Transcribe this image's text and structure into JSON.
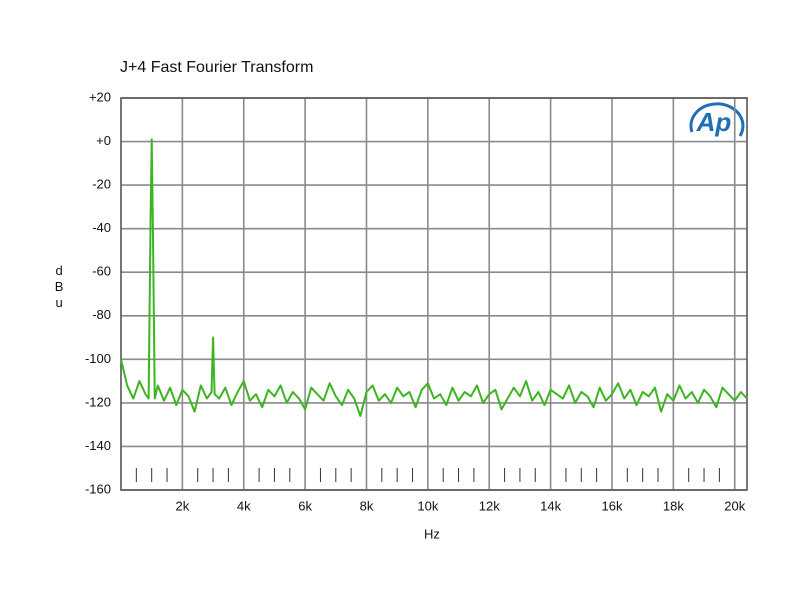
{
  "chart_data": {
    "type": "line",
    "title": "J+4 Fast Fourier Transform",
    "xlabel": "Hz",
    "ylabel": "dBu",
    "logo": "Ap",
    "color": "#3cb521",
    "grid": true,
    "xlim": [
      0,
      20400
    ],
    "ylim": [
      -160,
      20
    ],
    "xticks": [
      {
        "value": 2000,
        "label": "2k"
      },
      {
        "value": 4000,
        "label": "4k"
      },
      {
        "value": 6000,
        "label": "6k"
      },
      {
        "value": 8000,
        "label": "8k"
      },
      {
        "value": 10000,
        "label": "10k"
      },
      {
        "value": 12000,
        "label": "12k"
      },
      {
        "value": 14000,
        "label": "14k"
      },
      {
        "value": 16000,
        "label": "16k"
      },
      {
        "value": 18000,
        "label": "18k"
      },
      {
        "value": 20000,
        "label": "20k"
      }
    ],
    "xminorticks": [
      500,
      1000,
      1500,
      2500,
      3000,
      3500,
      4500,
      5000,
      5500,
      6500,
      7000,
      7500,
      8500,
      9000,
      9500,
      10500,
      11000,
      11500,
      12500,
      13000,
      13500,
      14500,
      15000,
      15500,
      16500,
      17000,
      17500,
      18500,
      19000,
      19500
    ],
    "yticks": [
      {
        "value": 20,
        "label": "+20"
      },
      {
        "value": 0,
        "label": "+0"
      },
      -20,
      -40,
      -60,
      -80,
      -100,
      -120,
      -140,
      -160
    ],
    "x": [
      0,
      200,
      400,
      600,
      800,
      900,
      960,
      1000,
      1040,
      1100,
      1200,
      1400,
      1600,
      1800,
      2000,
      2200,
      2400,
      2600,
      2800,
      2950,
      3000,
      3050,
      3200,
      3400,
      3600,
      3800,
      4000,
      4200,
      4400,
      4600,
      4800,
      5000,
      5200,
      5400,
      5600,
      5800,
      6000,
      6200,
      6400,
      6600,
      6800,
      7000,
      7200,
      7400,
      7600,
      7800,
      8000,
      8200,
      8400,
      8600,
      8800,
      9000,
      9200,
      9400,
      9600,
      9800,
      10000,
      10200,
      10400,
      10600,
      10800,
      11000,
      11200,
      11400,
      11600,
      11800,
      12000,
      12200,
      12400,
      12600,
      12800,
      13000,
      13200,
      13400,
      13600,
      13800,
      14000,
      14200,
      14400,
      14600,
      14800,
      15000,
      15200,
      15400,
      15600,
      15800,
      16000,
      16200,
      16400,
      16600,
      16800,
      17000,
      17200,
      17400,
      17600,
      17800,
      18000,
      18200,
      18400,
      18600,
      18800,
      19000,
      19200,
      19400,
      19600,
      19800,
      20000,
      20200,
      20400
    ],
    "values": [
      -100,
      -112,
      -118,
      -110,
      -116,
      -118,
      -40,
      1,
      -40,
      -118,
      -112,
      -119,
      -113,
      -121,
      -114,
      -117,
      -124,
      -112,
      -118,
      -115,
      -90,
      -116,
      -118,
      -113,
      -121,
      -115,
      -110,
      -119,
      -116,
      -122,
      -114,
      -117,
      -112,
      -120,
      -115,
      -118,
      -123,
      -113,
      -116,
      -119,
      -111,
      -117,
      -121,
      -114,
      -118,
      -126,
      -115,
      -112,
      -119,
      -116,
      -120,
      -113,
      -117,
      -115,
      -122,
      -114,
      -111,
      -118,
      -116,
      -121,
      -113,
      -119,
      -115,
      -117,
      -112,
      -120,
      -116,
      -114,
      -123,
      -118,
      -113,
      -117,
      -110,
      -119,
      -115,
      -121,
      -114,
      -116,
      -118,
      -112,
      -120,
      -115,
      -117,
      -122,
      -113,
      -119,
      -116,
      -111,
      -118,
      -114,
      -121,
      -115,
      -117,
      -113,
      -124,
      -116,
      -119,
      -112,
      -118,
      -115,
      -120,
      -114,
      -117,
      -122,
      -113,
      -116,
      -119,
      -115,
      -118
    ]
  }
}
